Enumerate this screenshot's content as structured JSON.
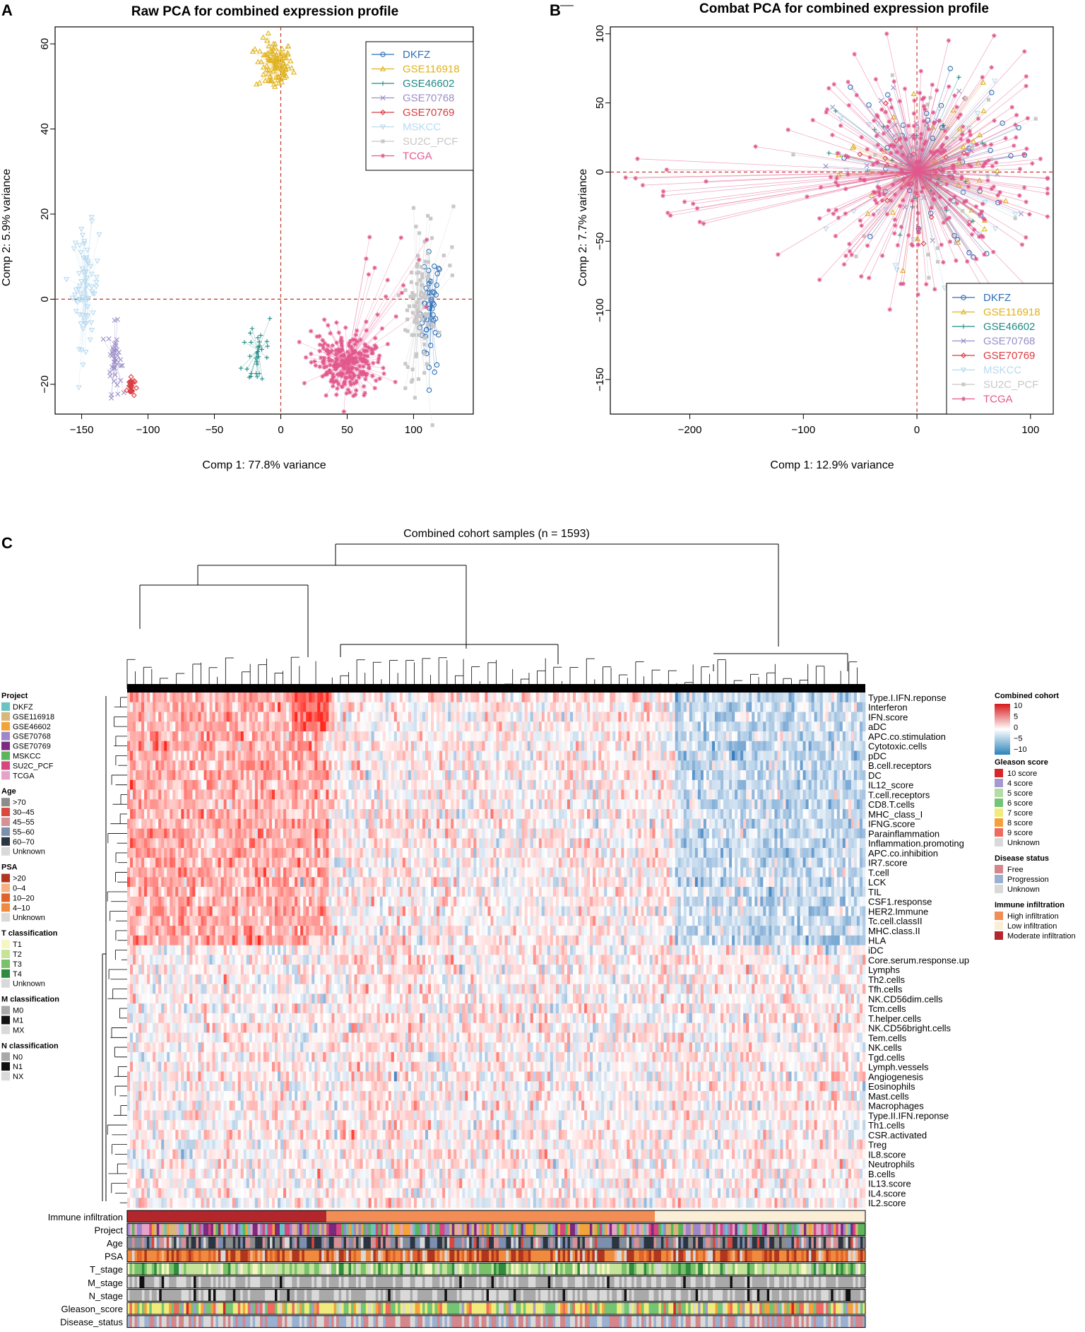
{
  "chart_data": [
    {
      "panel": "A",
      "type": "scatter",
      "title": "Raw PCA for combined expression profile",
      "xlabel": "Comp 1: 77.8% variance",
      "ylabel": "Comp 2: 5.9% variance",
      "xlim": [
        -170,
        145
      ],
      "ylim": [
        -27,
        64
      ],
      "xticks": [
        -150,
        -100,
        -50,
        0,
        50,
        100
      ],
      "yticks": [
        -20,
        0,
        20,
        40,
        60
      ],
      "reference_lines": {
        "x": 0,
        "y": 0
      },
      "legend_position": "top-right",
      "series": [
        {
          "name": "DKFZ",
          "color": "#2f6fb8",
          "marker": "circle",
          "centroid": [
            113,
            -3
          ],
          "spread": [
            4,
            7
          ]
        },
        {
          "name": "GSE116918",
          "color": "#e0b21c",
          "marker": "triangle",
          "centroid": [
            -5,
            55
          ],
          "spread": [
            7,
            3
          ]
        },
        {
          "name": "GSE46602",
          "color": "#1f8a85",
          "marker": "plus",
          "centroid": [
            -17,
            -12
          ],
          "spread": [
            6,
            5
          ]
        },
        {
          "name": "GSE70768",
          "color": "#9b8ec8",
          "marker": "cross",
          "centroid": [
            -125,
            -14
          ],
          "spread": [
            2.5,
            4
          ]
        },
        {
          "name": "GSE70769",
          "color": "#d93b42",
          "marker": "diamond",
          "centroid": [
            -113,
            -20.5
          ],
          "spread": [
            1.5,
            1.3
          ]
        },
        {
          "name": "MSKCC",
          "color": "#b9daf0",
          "marker": "triangle-down",
          "centroid": [
            -147,
            3
          ],
          "spread": [
            5,
            7
          ]
        },
        {
          "name": "SU2C_PCF",
          "color": "#c8c8c8",
          "marker": "square",
          "centroid": [
            103,
            -4
          ],
          "spread": [
            5,
            10
          ]
        },
        {
          "name": "TCGA",
          "color": "#e2588d",
          "marker": "asterisk",
          "centroid": [
            50,
            -15
          ],
          "spread": [
            13,
            4
          ]
        }
      ]
    },
    {
      "panel": "B",
      "type": "scatter",
      "title": "Combat PCA for combined expression profile",
      "xlabel": "Comp 1: 12.9% variance",
      "ylabel": "Comp 2: 7.7% variance",
      "xlim": [
        -270,
        120
      ],
      "ylim": [
        -175,
        105
      ],
      "xticks": [
        -200,
        -100,
        0,
        100
      ],
      "yticks": [
        -150,
        -100,
        -50,
        0,
        50,
        100
      ],
      "reference_lines": {
        "x": 0,
        "y": 0
      },
      "legend_position": "bottom-right",
      "series_same_as_panel": "A",
      "centroid": [
        0,
        0
      ]
    },
    {
      "panel": "C",
      "type": "heatmap",
      "title": "Combined cohort samples (n = 1593)",
      "rows": [
        "Type.I.IFN.reponse",
        "Interferon",
        "IFN.score",
        "aDC",
        "APC.co.stimulation",
        "Cytotoxic.cells",
        "pDC",
        "B.cell.receptors",
        "DC",
        "IL12_score",
        "T.cell.receptors",
        "CD8.T.cells",
        "MHC_class_I",
        "IFNG.score",
        "Parainflammation",
        "Inflammation.promoting",
        "APC.co.inhibition",
        "IR7.score",
        "T.cell",
        "LCK",
        "TIL",
        "CSF1.response",
        "HER2.Immune",
        "Tc.cell.classII",
        "MHC.class.II",
        "HLA",
        "iDC",
        "Core.serum.response.up",
        "Lymphs",
        "Th2.cells",
        "Tfh.cells",
        "NK.CD56dim.cells",
        "Tcm.cells",
        "T.helper.cells",
        "NK.CD56bright.cells",
        "Tem.cells",
        "NK.cells",
        "Tgd.cells",
        "Lymph.vessels",
        "Angiogenesis",
        "Eosinophils",
        "Mast.cells",
        "Macrophages",
        "Type.II.IFN.reponse",
        "Th1.cells",
        "CSR.activated",
        "Treg",
        "IL8.score",
        "Neutrophils",
        "B.cells",
        "IL13.score",
        "IL4.score",
        "IL2.score"
      ],
      "color_scale": {
        "title": "Combined cohort",
        "ticks": [
          "10",
          "5",
          "0",
          "−5",
          "−10"
        ],
        "colors": [
          "#d7191c",
          "#ffffff",
          "#2b83ba"
        ]
      },
      "annotation_tracks": [
        "Immune infiltration",
        "Project",
        "Age",
        "PSA",
        "T_stage",
        "M_stage",
        "N_stage",
        "Gleason_score",
        "Disease_status"
      ],
      "immune_infiltration_blocks": [
        {
          "label": "Moderate infiltration",
          "fraction": 0.27
        },
        {
          "label": "High infiltration",
          "fraction": 0.445
        },
        {
          "label": "Low infiltration",
          "fraction": 0.285
        }
      ]
    }
  ],
  "panels": {
    "a": {
      "letter": "A",
      "title": "Raw PCA for combined expression profile",
      "xlabel": "Comp 1: 77.8% variance",
      "ylabel": "Comp 2: 5.9% variance"
    },
    "b": {
      "letter": "B",
      "title": "Combat PCA for combined expression profile",
      "xlabel": "Comp 1: 12.9% variance",
      "ylabel": "Comp 2: 7.7% variance"
    },
    "c": {
      "letter": "C",
      "title": "Combined cohort samples (n = 1593)"
    }
  },
  "legend": {
    "groups": [
      "DKFZ",
      "GSE116918",
      "GSE46602",
      "GSE70768",
      "GSE70769",
      "MSKCC",
      "SU2C_PCF",
      "TCGA"
    ],
    "colors": [
      "#2f6fb8",
      "#e0b21c",
      "#1f8a85",
      "#9b8ec8",
      "#d93b42",
      "#b9daf0",
      "#c8c8c8",
      "#e2588d"
    ]
  },
  "left_legend": [
    {
      "title": "Project",
      "items": [
        {
          "label": "DKFZ",
          "color": "#6cc3c3"
        },
        {
          "label": "GSE116918",
          "color": "#d9b77a"
        },
        {
          "label": "GSE46602",
          "color": "#f2a33a"
        },
        {
          "label": "GSE70768",
          "color": "#9c88c9"
        },
        {
          "label": "GSE70769",
          "color": "#7b2a7e"
        },
        {
          "label": "MSKCC",
          "color": "#5bb55b"
        },
        {
          "label": "SU2C_PCF",
          "color": "#d6467f"
        },
        {
          "label": "TCGA",
          "color": "#e6a3c9"
        }
      ]
    },
    {
      "title": "Age",
      "items": [
        {
          "label": ">70",
          "color": "#8c8c8c"
        },
        {
          "label": "30–45",
          "color": "#d9473e"
        },
        {
          "label": "45–55",
          "color": "#d49196"
        },
        {
          "label": "55–60",
          "color": "#7d8fae"
        },
        {
          "label": "60–70",
          "color": "#2b3541"
        },
        {
          "label": "Unknown",
          "color": "#d9d9d9"
        }
      ]
    },
    {
      "title": "PSA",
      "items": [
        {
          "label": ">20",
          "color": "#b1361f"
        },
        {
          "label": "0–4",
          "color": "#f5b183"
        },
        {
          "label": "10–20",
          "color": "#e0632b"
        },
        {
          "label": "4–10",
          "color": "#f08a3e"
        },
        {
          "label": "Unknown",
          "color": "#d9d9d9"
        }
      ]
    },
    {
      "title": "T classification",
      "items": [
        {
          "label": "T1",
          "color": "#f6f6c4"
        },
        {
          "label": "T2",
          "color": "#c6e39a"
        },
        {
          "label": "T3",
          "color": "#79c26a"
        },
        {
          "label": "T4",
          "color": "#2f8c3f"
        },
        {
          "label": "Unknown",
          "color": "#d9d9d9"
        }
      ]
    },
    {
      "title": "M classification",
      "items": [
        {
          "label": "M0",
          "color": "#a9a9a9"
        },
        {
          "label": "M1",
          "color": "#111111"
        },
        {
          "label": "MX",
          "color": "#d9d9d9"
        }
      ]
    },
    {
      "title": "N classification",
      "items": [
        {
          "label": "N0",
          "color": "#a9a9a9"
        },
        {
          "label": "N1",
          "color": "#111111"
        },
        {
          "label": "NX",
          "color": "#d9d9d9"
        }
      ]
    }
  ],
  "right_legend": [
    {
      "title": "Gleason score",
      "items": [
        {
          "label": "10 score",
          "color": "#d62728"
        },
        {
          "label": "4 score",
          "color": "#a49ad0"
        },
        {
          "label": "5 score",
          "color": "#b5dca3"
        },
        {
          "label": "6 score",
          "color": "#74c476"
        },
        {
          "label": "7 score",
          "color": "#f1eb7c"
        },
        {
          "label": "8 score",
          "color": "#f6a03b"
        },
        {
          "label": "9 score",
          "color": "#ef6a5e"
        },
        {
          "label": "Unknown",
          "color": "#d9d9d9"
        }
      ]
    },
    {
      "title": "Disease status",
      "items": [
        {
          "label": "Free",
          "color": "#d3868c"
        },
        {
          "label": "Progression",
          "color": "#9ab0d0"
        },
        {
          "label": "Unknown",
          "color": "#d9d9d9"
        }
      ]
    },
    {
      "title": "Immune infiltration",
      "items": [
        {
          "label": "High infiltration",
          "color": "#f28e55"
        },
        {
          "label": "Low infiltration",
          "color": "#fbeed7"
        },
        {
          "label": "Moderate infiltration",
          "color": "#b3262b"
        }
      ]
    }
  ]
}
